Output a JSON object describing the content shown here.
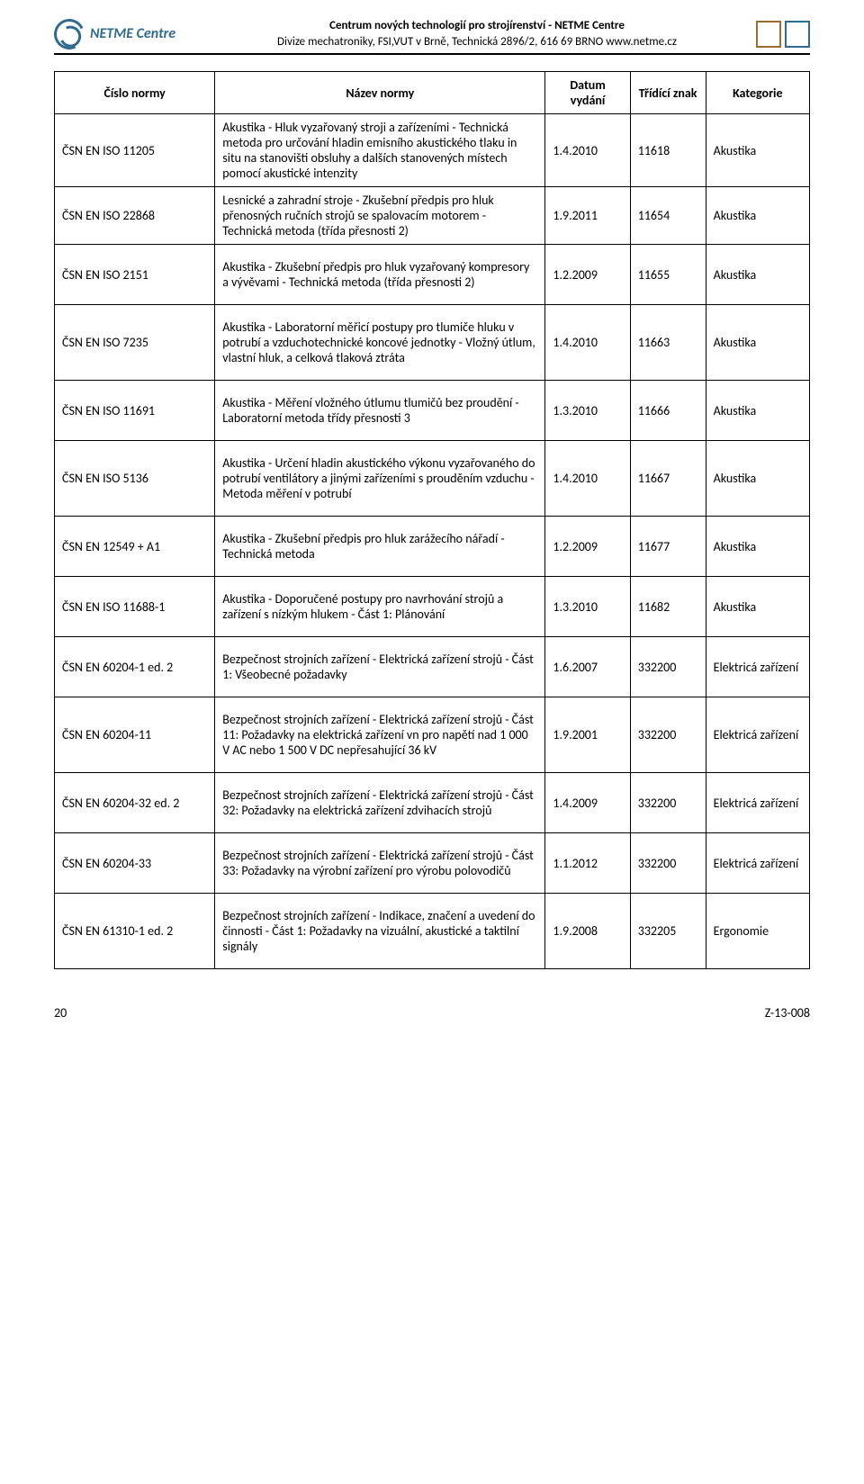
{
  "header": {
    "logo_text": "NETME Centre",
    "center_line1": "Centrum nových technologií pro strojírenství - NETME Centre",
    "center_line2": "Divize mechatroniky, FSI,VUT v Brně, Technická 2896/2, 616 69 BRNO www.netme.cz"
  },
  "table": {
    "columns": [
      "Číslo normy",
      "Název normy",
      "Datum vydání",
      "Třídící znak",
      "Kategorie"
    ],
    "rows": [
      {
        "num": "ČSN EN ISO 11205",
        "name": "Akustika - Hluk vyzařovaný stroji a zařízeními - Technická metoda pro určování hladin emisního akustického tlaku in situ na stanovišti obsluhy a dalších stanovených místech pomocí akustické intenzity",
        "date": "1.4.2010",
        "code": "11618",
        "cat": "Akustika",
        "tall": false
      },
      {
        "num": "ČSN EN ISO 22868",
        "name": "Lesnické a zahradní stroje - Zkušební předpis pro hluk přenosných ručních strojů se spalovacím motorem - Technická metoda (třída přesnosti 2)",
        "date": "1.9.2011",
        "code": "11654",
        "cat": "Akustika",
        "tall": false
      },
      {
        "num": "ČSN EN ISO 2151",
        "name": "Akustika - Zkušební předpis pro hluk vyzařovaný kompresory a vývěvami - Technická metoda (třída přesnosti 2)",
        "date": "1.2.2009",
        "code": "11655",
        "cat": "Akustika",
        "tall": true
      },
      {
        "num": "ČSN EN ISO 7235",
        "name": "Akustika - Laboratorní měřicí postupy pro tlumiče hluku v potrubí a vzduchotechnické koncové jednotky - Vložný útlum, vlastní hluk, a celková tlaková ztráta",
        "date": "1.4.2010",
        "code": "11663",
        "cat": "Akustika",
        "tall": true
      },
      {
        "num": "ČSN EN ISO 11691",
        "name": "Akustika - Měření vložného útlumu tlumičů bez proudění - Laboratorní metoda třídy přesnosti 3",
        "date": "1.3.2010",
        "code": "11666",
        "cat": "Akustika",
        "tall": true
      },
      {
        "num": "ČSN EN ISO 5136",
        "name": "Akustika - Určení hladin akustického výkonu vyzařovaného do potrubí ventilátory a jinými zařízeními s prouděním vzduchu - Metoda měření v potrubí",
        "date": "1.4.2010",
        "code": "11667",
        "cat": "Akustika",
        "tall": true
      },
      {
        "num": "ČSN EN 12549 + A1",
        "name": "Akustika - Zkušební předpis pro hluk zarážecího nářadí - Technická metoda",
        "date": "1.2.2009",
        "code": "11677",
        "cat": "Akustika",
        "tall": true
      },
      {
        "num": "ČSN EN ISO 11688-1",
        "name": "Akustika - Doporučené postupy pro navrhování strojů a zařízení s nízkým hlukem - Část 1: Plánování",
        "date": "1.3.2010",
        "code": "11682",
        "cat": "Akustika",
        "tall": true
      },
      {
        "num": "ČSN EN 60204-1 ed. 2",
        "name": "Bezpečnost strojních zařízení - Elektrická zařízení strojů - Část 1: Všeobecné požadavky",
        "date": "1.6.2007",
        "code": "332200",
        "cat": "Elektricá zařízení",
        "tall": true
      },
      {
        "num": "ČSN EN 60204-11",
        "name": "Bezpečnost strojních zařízení - Elektrická zařízení strojů - Část 11: Požadavky na elektrická zařízení vn pro napětí nad 1 000 V AC nebo 1 500 V DC nepřesahující 36 kV",
        "date": "1.9.2001",
        "code": "332200",
        "cat": "Elektricá zařízení",
        "tall": true
      },
      {
        "num": "ČSN EN 60204-32 ed. 2",
        "name": "Bezpečnost strojních zařízení - Elektrická zařízení strojů - Část 32: Požadavky na elektrická zařízení zdvihacích strojů",
        "date": "1.4.2009",
        "code": "332200",
        "cat": "Elektricá zařízení",
        "tall": true
      },
      {
        "num": "ČSN EN 60204-33",
        "name": "Bezpečnost strojních zařízení - Elektrická zařízení strojů - Část 33: Požadavky na výrobní zařízení pro výrobu polovodičů",
        "date": "1.1.2012",
        "code": "332200",
        "cat": "Elektricá zařízení",
        "tall": true
      },
      {
        "num": "ČSN EN 61310-1 ed. 2",
        "name": "Bezpečnost strojních zařízení - Indikace, značení a uvedení do činnosti - Část 1: Požadavky na vizuální, akustické a taktilní signály",
        "date": "1.9.2008",
        "code": "332205",
        "cat": "Ergonomie",
        "tall": true
      }
    ]
  },
  "footer": {
    "page_number": "20",
    "doc_code": "Z-13-008"
  }
}
